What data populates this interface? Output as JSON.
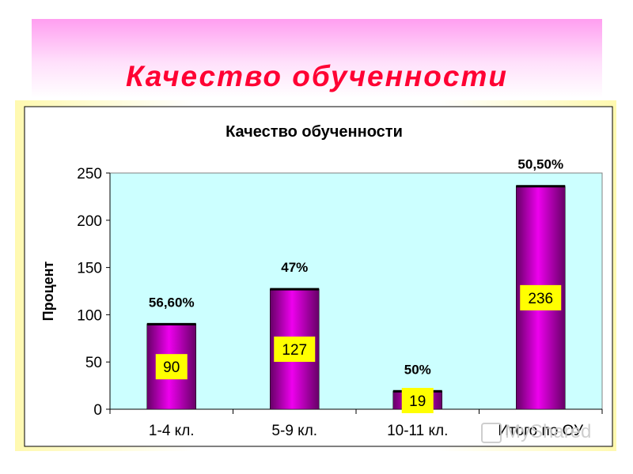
{
  "slide": {
    "title": "Качество обученности"
  },
  "watermark": {
    "text": "MyShared"
  },
  "chart_data": {
    "type": "bar",
    "title": "Качество обученности",
    "xlabel": "",
    "ylabel": "Процент",
    "ylim": [
      0,
      250
    ],
    "yticks": [
      0,
      50,
      100,
      150,
      200,
      250
    ],
    "grid": false,
    "legend": "none",
    "categories": [
      "1-4 кл.",
      "5-9 кл.",
      "10-11 кл.",
      "Итого по ОУ"
    ],
    "values": [
      90,
      127,
      19,
      236
    ],
    "value_labels": [
      "90",
      "127",
      "19",
      "236"
    ],
    "percent_labels": [
      "56,60%",
      "47%",
      "50%",
      "50,50%"
    ],
    "colors": {
      "plot_bg": "#ccffff",
      "bar": "#cc00cc",
      "bar_dark": "#660066",
      "label_bg": "#ffff00",
      "title": "#ff0033"
    }
  }
}
